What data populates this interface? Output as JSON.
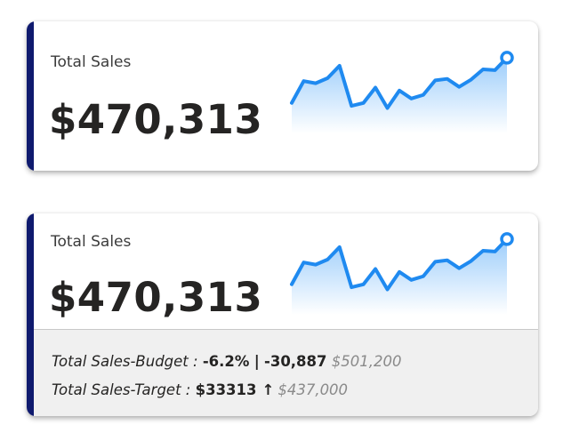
{
  "cards": [
    {
      "title": "Total Sales",
      "value": "$470,313"
    },
    {
      "title": "Total Sales",
      "value": "$470,313",
      "footer": {
        "budget_label": "Total Sales-Budget :",
        "budget_pct": "-6.2%",
        "separator": "|",
        "budget_diff": "-30,887",
        "budget_value": "$501,200",
        "target_label": "Total Sales-Target :",
        "target_diff": "$33313",
        "target_arrow": "↑",
        "target_value": "$437,000"
      }
    }
  ],
  "chart_data": {
    "type": "area",
    "y": [
      32,
      62,
      59,
      66,
      83,
      28,
      32,
      53,
      25,
      49,
      38,
      43,
      63,
      65,
      54,
      64,
      78,
      77,
      94
    ],
    "colors": {
      "line": "#1f8af0",
      "fill_top": "#9ccdfb",
      "fill_bottom": "#ffffff",
      "accent_bar": "#0f1a6e"
    }
  }
}
